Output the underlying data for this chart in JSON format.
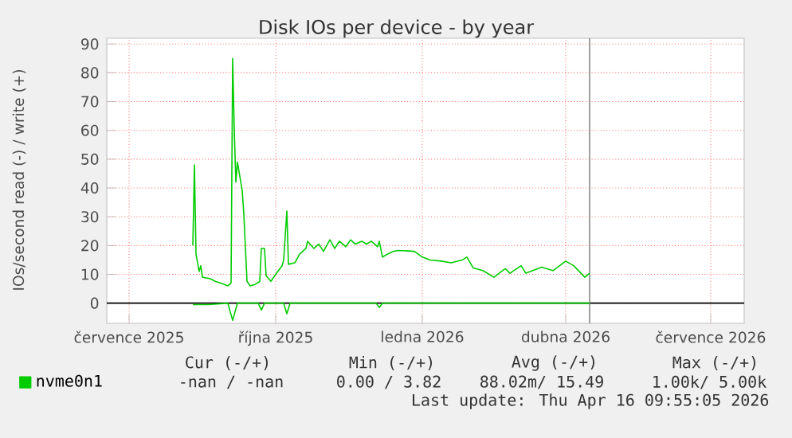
{
  "chart_data": {
    "type": "line",
    "title": "Disk IOs per device - by year",
    "ylabel": "IOs/second read (-) / write (+)",
    "xlim": [
      "2025-06-17",
      "2026-07-22"
    ],
    "ylim": [
      -7,
      92
    ],
    "xticks": [
      {
        "value": "2025-07-01",
        "label": "července 2025"
      },
      {
        "value": "2025-10-01",
        "label": "října 2025"
      },
      {
        "value": "2026-01-01",
        "label": "ledna 2026"
      },
      {
        "value": "2026-04-01",
        "label": "dubna 2026"
      },
      {
        "value": "2026-07-01",
        "label": "července 2026"
      }
    ],
    "yticks": [
      0,
      10,
      20,
      30,
      40,
      50,
      60,
      70,
      80,
      90
    ],
    "grid": true,
    "legend": "bottom left",
    "series": [
      {
        "name": "nvme0n1",
        "color": "#00cc00",
        "x": [
          "2025-08-10",
          "2025-08-11",
          "2025-08-12",
          "2025-08-14",
          "2025-08-15",
          "2025-08-16",
          "2025-08-21",
          "2025-08-24",
          "2025-08-29",
          "2025-09-01",
          "2025-09-03",
          "2025-09-04",
          "2025-09-05",
          "2025-09-06",
          "2025-09-07",
          "2025-09-10",
          "2025-09-11",
          "2025-09-13",
          "2025-09-15",
          "2025-09-18",
          "2025-09-21",
          "2025-09-22",
          "2025-09-24",
          "2025-09-25",
          "2025-09-28",
          "2025-10-01",
          "2025-10-05",
          "2025-10-06",
          "2025-10-08",
          "2025-10-09",
          "2025-10-13",
          "2025-10-16",
          "2025-10-20",
          "2025-10-21",
          "2025-10-25",
          "2025-10-28",
          "2025-10-31",
          "2025-11-04",
          "2025-11-07",
          "2025-11-10",
          "2025-11-14",
          "2025-11-17",
          "2025-11-20",
          "2025-11-24",
          "2025-11-27",
          "2025-11-30",
          "2025-12-04",
          "2025-12-05",
          "2025-12-07",
          "2025-12-10",
          "2025-12-14",
          "2025-12-17",
          "2025-12-27",
          "2026-01-01",
          "2026-01-06",
          "2026-01-13",
          "2026-01-19",
          "2026-01-26",
          "2026-01-29",
          "2026-02-02",
          "2026-02-08",
          "2026-02-15",
          "2026-02-22",
          "2026-02-25",
          "2026-03-04",
          "2026-03-07",
          "2026-03-17",
          "2026-03-24",
          "2026-04-01",
          "2026-04-06",
          "2026-04-13",
          "2026-04-16"
        ],
        "values": [
          20,
          48,
          17,
          11,
          13,
          9,
          8.5,
          7.6,
          6.7,
          6,
          7,
          85,
          60,
          42,
          49,
          39,
          31,
          7.6,
          6,
          6.5,
          7.5,
          19,
          19,
          9.5,
          7.6,
          10,
          13,
          15,
          32,
          13.5,
          14,
          17,
          19,
          21.5,
          19,
          20.5,
          18,
          22,
          19,
          21.5,
          19.6,
          22,
          20.5,
          21.5,
          20.5,
          21.5,
          19.6,
          21.5,
          16,
          17,
          18,
          18.3,
          18,
          16,
          15,
          14.6,
          14,
          15,
          16,
          12.2,
          11.3,
          9,
          12,
          10.4,
          13,
          10.4,
          12.5,
          11.3,
          14.6,
          13,
          9,
          10.4
        ]
      },
      {
        "color": "#00cc00",
        "x": [
          "2025-08-10",
          "2025-08-20",
          "2025-09-01",
          "2025-09-04",
          "2025-09-07",
          "2025-09-20",
          "2025-09-22",
          "2025-09-24",
          "2025-10-06",
          "2025-10-08",
          "2025-10-10",
          "2025-12-03",
          "2025-12-05",
          "2025-12-07",
          "2026-04-16"
        ],
        "values": [
          -0.5,
          -0.5,
          0,
          -6,
          0,
          0,
          -2.4,
          0,
          0,
          -3.7,
          0,
          0,
          -1.5,
          0,
          0
        ]
      }
    ],
    "ref_lines": [
      {
        "axis": "y",
        "value": 0,
        "color": "#000000"
      },
      {
        "axis": "x",
        "value": "2026-04-16",
        "color": "#888888"
      }
    ],
    "annotations": [
      "Cur (-/+)",
      "Min (-/+)",
      "Avg (-/+)",
      "Max (-/+)",
      "-nan /  -nan",
      "0.00 /  3.82",
      "88.02m/ 15.49",
      "1.00k/  5.00k",
      "Last update: Thu Apr 16 09:55:05 2026"
    ]
  }
}
